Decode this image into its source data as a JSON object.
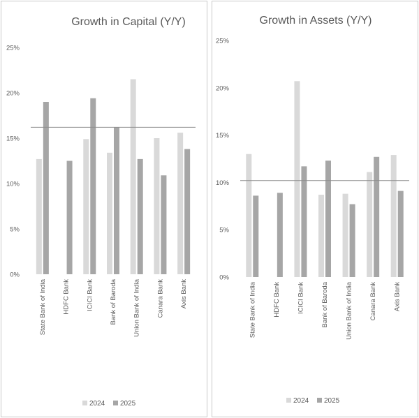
{
  "chart_data": [
    {
      "type": "bar",
      "title": "Growth in Capital (Y/Y)",
      "categories": [
        "State Bank of India",
        "HDFC Bank",
        "ICICI Bank",
        "Bank of Baroda",
        "Union Bank of India",
        "Canara Bank",
        "Axis Bank"
      ],
      "series": [
        {
          "name": "2024",
          "color": "#d9d9d9",
          "values": [
            12.7,
            null,
            14.9,
            13.4,
            21.5,
            15.0,
            15.6
          ]
        },
        {
          "name": "2025",
          "color": "#a6a6a6",
          "values": [
            19.0,
            12.5,
            19.4,
            16.2,
            12.7,
            10.9,
            13.8
          ]
        }
      ],
      "reference_line": 16.2,
      "ylim": [
        0,
        25
      ],
      "yticks": [
        "0%",
        "5%",
        "10%",
        "15%",
        "20%",
        "25%"
      ],
      "grid": false,
      "legend": "bottom"
    },
    {
      "type": "bar",
      "title": "Growth in Assets (Y/Y)",
      "categories": [
        "State Bank of India",
        "HDFC Bank",
        "ICICI Bank",
        "Bank of Baroda",
        "Union Bank of India",
        "Canara Bank",
        "Axis Bank"
      ],
      "series": [
        {
          "name": "2024",
          "color": "#d9d9d9",
          "values": [
            13.0,
            null,
            20.7,
            8.7,
            8.8,
            11.1,
            12.9
          ]
        },
        {
          "name": "2025",
          "color": "#a6a6a6",
          "values": [
            8.6,
            8.9,
            11.7,
            12.3,
            7.7,
            12.7,
            9.1
          ]
        }
      ],
      "reference_line": 10.2,
      "ylim": [
        0,
        25
      ],
      "yticks": [
        "0%",
        "5%",
        "10%",
        "15%",
        "20%",
        "25%"
      ],
      "grid": false,
      "legend": "bottom"
    }
  ]
}
